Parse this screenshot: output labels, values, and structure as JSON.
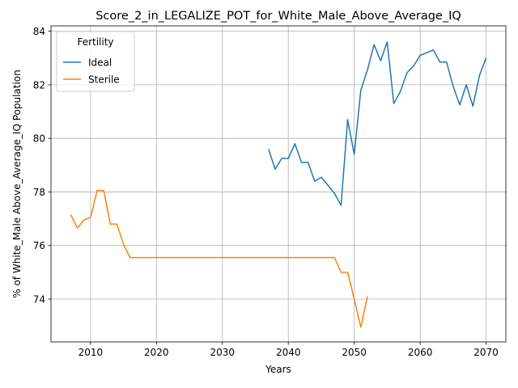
{
  "chart_data": {
    "type": "line",
    "title": "Score_2_in_LEGALIZE_POT_for_White_Male_Above_Average_IQ",
    "xlabel": "Years",
    "ylabel": "% of White_Male Above_Average_IQ Population",
    "xlim": [
      2004,
      2073
    ],
    "ylim": [
      72.4,
      84.2
    ],
    "xticks": [
      2010,
      2020,
      2030,
      2040,
      2050,
      2060,
      2070
    ],
    "yticks": [
      74,
      76,
      78,
      80,
      82,
      84
    ],
    "grid": true,
    "legend": {
      "title": "Fertility",
      "position": "top-left"
    },
    "series": [
      {
        "name": "Ideal",
        "color": "#1f77b4",
        "x": [
          2037,
          2038,
          2039,
          2040,
          2041,
          2042,
          2043,
          2044,
          2045,
          2046,
          2047,
          2048,
          2049,
          2050,
          2051,
          2052,
          2053,
          2054,
          2055,
          2056,
          2057,
          2058,
          2059,
          2060,
          2061,
          2062,
          2063,
          2064,
          2065,
          2066,
          2067,
          2068,
          2069,
          2070
        ],
        "y": [
          79.6,
          78.85,
          79.25,
          79.25,
          79.8,
          79.1,
          79.1,
          78.4,
          78.55,
          78.25,
          77.95,
          77.5,
          80.7,
          79.4,
          81.8,
          82.55,
          83.5,
          82.9,
          83.6,
          81.3,
          81.75,
          82.45,
          82.7,
          83.1,
          83.2,
          83.3,
          82.85,
          82.85,
          81.95,
          81.25,
          82.0,
          81.2,
          82.35,
          83.0
        ]
      },
      {
        "name": "Sterile",
        "color": "#ff7f0e",
        "x": [
          2007,
          2008,
          2009,
          2010,
          2011,
          2012,
          2013,
          2014,
          2015,
          2016,
          2017,
          2018,
          2019,
          2020,
          2021,
          2022,
          2023,
          2024,
          2025,
          2026,
          2027,
          2028,
          2029,
          2030,
          2031,
          2032,
          2033,
          2034,
          2035,
          2036,
          2037,
          2038,
          2039,
          2040,
          2041,
          2042,
          2043,
          2044,
          2045,
          2046,
          2047,
          2048,
          2049,
          2050,
          2051,
          2052
        ],
        "y": [
          77.15,
          76.65,
          76.95,
          77.05,
          78.05,
          78.05,
          76.8,
          76.8,
          76.05,
          75.55,
          75.55,
          75.55,
          75.55,
          75.55,
          75.55,
          75.55,
          75.55,
          75.55,
          75.55,
          75.55,
          75.55,
          75.55,
          75.55,
          75.55,
          75.55,
          75.55,
          75.55,
          75.55,
          75.55,
          75.55,
          75.55,
          75.55,
          75.55,
          75.55,
          75.55,
          75.55,
          75.55,
          75.55,
          75.55,
          75.55,
          75.55,
          75.0,
          75.0,
          74.0,
          72.95,
          74.1
        ]
      }
    ]
  }
}
